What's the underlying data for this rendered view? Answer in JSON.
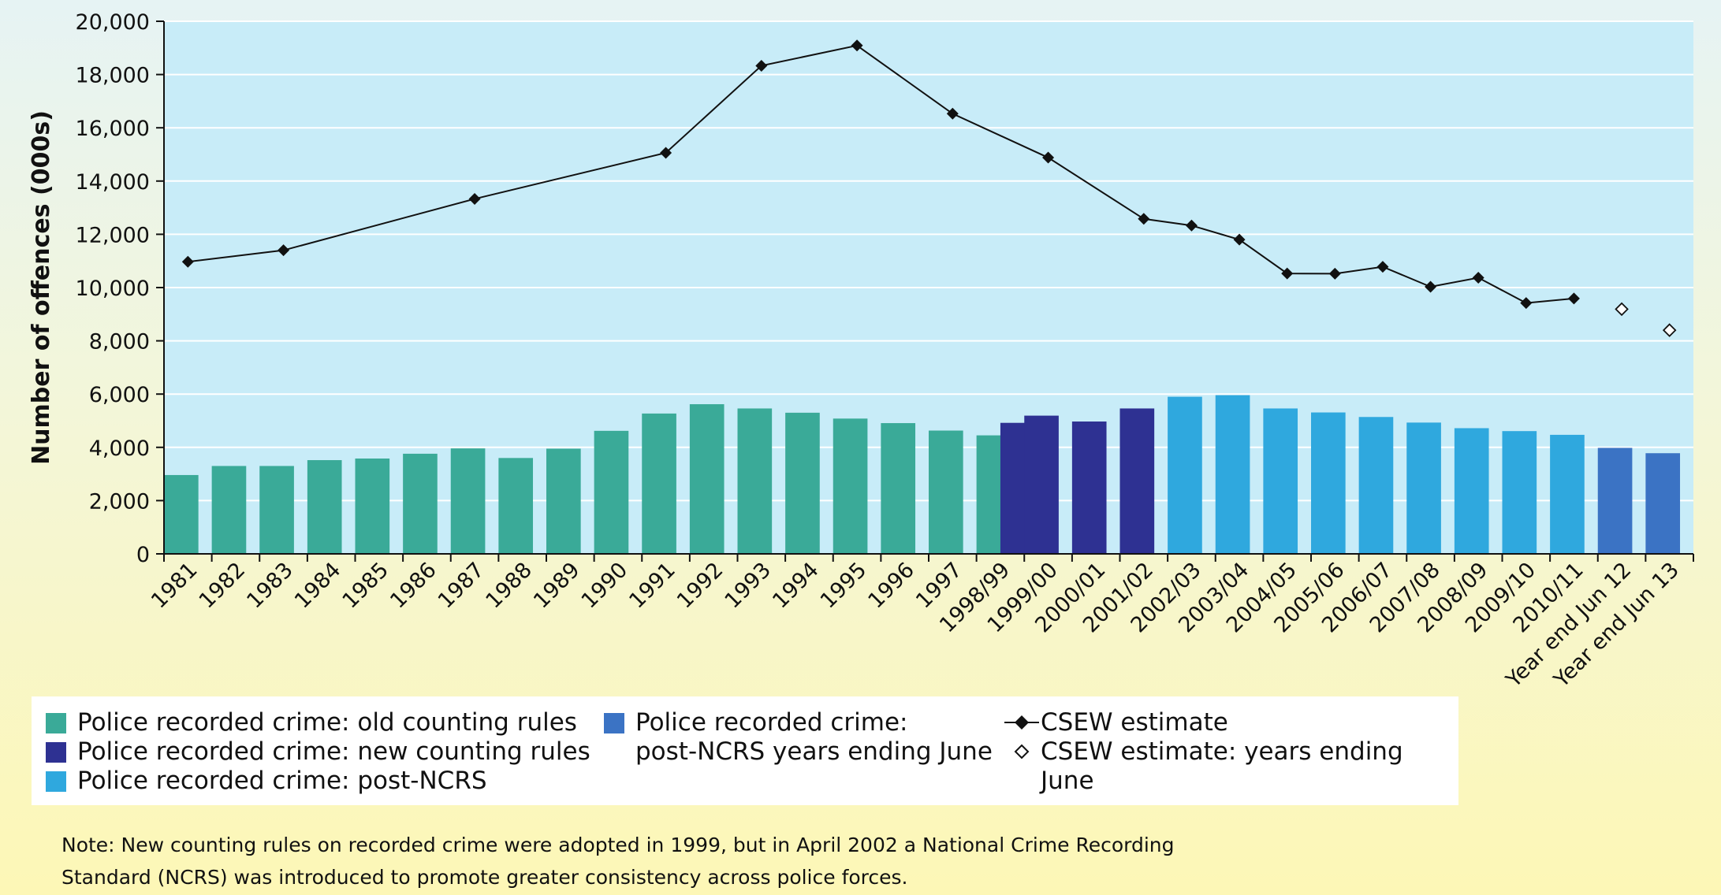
{
  "chart_data": {
    "type": "bar",
    "ylabel": "Number of offences (000s)",
    "ylim": [
      0,
      20000
    ],
    "yticks": [
      "0",
      "2,000",
      "4,000",
      "6,000",
      "8,000",
      "10,000",
      "12,000",
      "14,000",
      "16,000",
      "18,000",
      "20,000"
    ],
    "ytick_values": [
      0,
      2000,
      4000,
      6000,
      8000,
      10000,
      12000,
      14000,
      16000,
      18000,
      20000
    ],
    "grid": true,
    "categories": [
      "1981",
      "1982",
      "1983",
      "1984",
      "1985",
      "1986",
      "1987",
      "1988",
      "1989",
      "1990",
      "1991",
      "1992",
      "1993",
      "1994",
      "1995",
      "1996",
      "1997",
      "1998/99",
      "1999/00",
      "2000/01",
      "2001/02",
      "2002/03",
      "2003/04",
      "2004/05",
      "2005/06",
      "2006/07",
      "2007/08",
      "2008/09",
      "2009/10",
      "2010/11",
      "Year end Jun 12",
      "Year end Jun 13"
    ],
    "bar_values": [
      2960,
      3300,
      3300,
      3520,
      3580,
      3760,
      3960,
      3600,
      3950,
      4620,
      5270,
      5620,
      5460,
      5300,
      5080,
      4910,
      4630,
      4450,
      4920,
      5190,
      4970,
      5460,
      5900,
      5960,
      5460,
      5310,
      5140,
      4930,
      4720,
      4610,
      4470,
      3980,
      3780
    ],
    "bar_series": [
      0,
      0,
      0,
      0,
      0,
      0,
      0,
      0,
      0,
      0,
      0,
      0,
      0,
      0,
      0,
      0,
      0,
      0,
      1,
      1,
      1,
      1,
      2,
      2,
      2,
      2,
      2,
      2,
      2,
      2,
      2,
      3,
      3
    ],
    "bar_slots": [
      0,
      1,
      2,
      3,
      4,
      5,
      6,
      7,
      8,
      9,
      10,
      11,
      12,
      13,
      14,
      15,
      16,
      17,
      17.5,
      18,
      19,
      20,
      21,
      22,
      23,
      24,
      25,
      26,
      27,
      28,
      29,
      30,
      31
    ],
    "series": [
      {
        "name": "Police recorded crime: old counting rules",
        "color": "#3aaa98"
      },
      {
        "name": "Police recorded crime: new counting rules",
        "color": "#2e3192"
      },
      {
        "name": "Police recorded crime: post-NCRS",
        "color": "#2fa8de"
      },
      {
        "name_lines": [
          "Police recorded crime:",
          "post-NCRS years ending June"
        ],
        "color": "#3b73c4"
      }
    ],
    "line_series": {
      "name": "CSEW estimate",
      "color": "#111111",
      "points": [
        {
          "category": "1981",
          "value": 10970
        },
        {
          "category": "1983",
          "value": 11400
        },
        {
          "category": "1987",
          "value": 13330
        },
        {
          "category": "1991",
          "value": 15060
        },
        {
          "category": "1993",
          "value": 18330
        },
        {
          "category": "1995",
          "value": 19090
        },
        {
          "category": "1997",
          "value": 16530
        },
        {
          "category": "1999/00",
          "value": 14880
        },
        {
          "category": "2001/02",
          "value": 12580
        },
        {
          "category": "2002/03",
          "value": 12330
        },
        {
          "category": "2003/04",
          "value": 11800
        },
        {
          "category": "2004/05",
          "value": 10530
        },
        {
          "category": "2005/06",
          "value": 10520
        },
        {
          "category": "2006/07",
          "value": 10780
        },
        {
          "category": "2007/08",
          "value": 10030
        },
        {
          "category": "2008/09",
          "value": 10370
        },
        {
          "category": "2009/10",
          "value": 9420
        },
        {
          "category": "2010/11",
          "value": 9590
        }
      ]
    },
    "hollow_series": {
      "name": "CSEW estimate: years ending June",
      "points": [
        {
          "category": "Year end Jun 12",
          "value": 9190
        },
        {
          "category": "Year end Jun 13",
          "value": 8400
        }
      ]
    }
  },
  "legend": {
    "old_rules": "Police recorded crime: old counting rules",
    "new_rules": "Police recorded crime: new counting rules",
    "post_ncrs": "Police recorded crime: post-NCRS",
    "june_line1": "Police recorded crime:",
    "june_line2": "post-NCRS years ending June",
    "csew": "CSEW estimate",
    "csew_june": "CSEW estimate: years ending June"
  },
  "note": {
    "line1": "Note: New counting rules on recorded crime were adopted in 1999, but in April 2002 a National Crime Recording",
    "line2": "Standard (NCRS) was introduced to promote greater consistency across police forces."
  },
  "colors": {
    "plot_bg": "#c8ecf8",
    "old_rules": "#3aaa98",
    "new_rules": "#2e3192",
    "post_ncrs": "#2fa8de",
    "post_ncrs_june": "#3b73c4"
  }
}
